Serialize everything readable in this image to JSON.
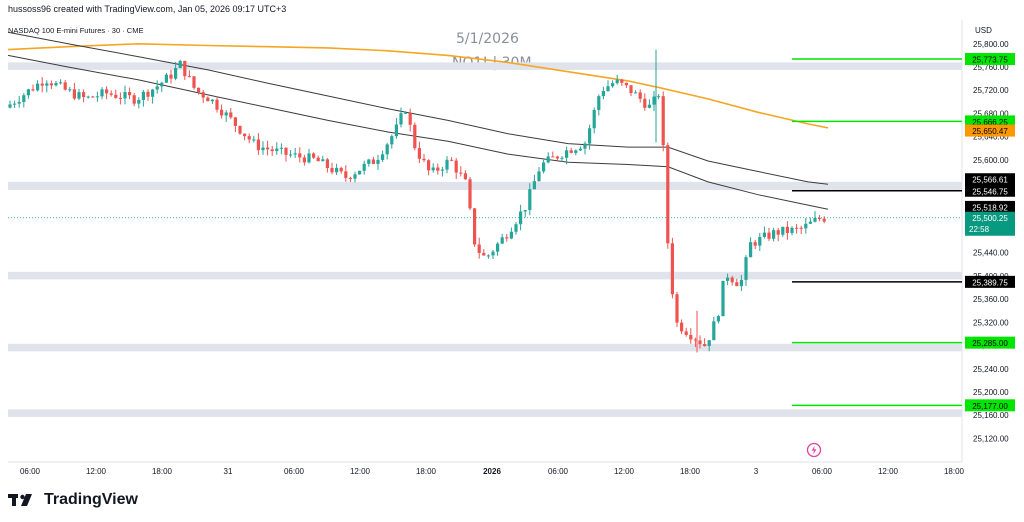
{
  "header": {
    "credit": "hussoss96 created with TradingView.com, Jan 05, 2026 09:17 UTC+3",
    "symbol_line": "NASDAQ 100 E-mini Futures · 30 · CME",
    "currency": "USD"
  },
  "watermark": {
    "date": "5/1/2026",
    "symbol": "NQ1! | 30M"
  },
  "footer": {
    "brand": "TradingView"
  },
  "icons": {
    "logo": "tradingview-logo-icon",
    "replay": "lightning-icon"
  },
  "colors": {
    "up": "#26a69a",
    "down": "#ef5350",
    "zone": "#e0e3eb",
    "support_resistance": "#00e600",
    "key_level": "#000000",
    "ma_long": "#f5a623",
    "ma_bands": "#3c3c3c",
    "last_price": "#089981"
  },
  "chart_data": {
    "type": "candlestick",
    "title": "",
    "ylim": [
      25100,
      25810
    ],
    "y_ticks": [
      25120,
      25160,
      25200,
      25240,
      25280,
      25320,
      25360,
      25400,
      25440,
      25480,
      25520,
      25560,
      25600,
      25640,
      25680,
      25720,
      25760,
      25800
    ],
    "x_tick_labels": [
      {
        "label": "06:00",
        "bold": false
      },
      {
        "label": "12:00",
        "bold": false
      },
      {
        "label": "18:00",
        "bold": false
      },
      {
        "label": "31",
        "bold": false
      },
      {
        "label": "06:00",
        "bold": false
      },
      {
        "label": "12:00",
        "bold": false
      },
      {
        "label": "18:00",
        "bold": false
      },
      {
        "label": "2026",
        "bold": true
      },
      {
        "label": "06:00",
        "bold": false
      },
      {
        "label": "12:00",
        "bold": false
      },
      {
        "label": "18:00",
        "bold": false
      },
      {
        "label": "3",
        "bold": false
      },
      {
        "label": "06:00",
        "bold": false
      },
      {
        "label": "12:00",
        "bold": false
      },
      {
        "label": "18:00",
        "bold": false
      }
    ],
    "zones": [
      {
        "low": 25755,
        "high": 25768
      },
      {
        "low": 25548,
        "high": 25562
      },
      {
        "low": 25394,
        "high": 25407
      },
      {
        "low": 25270,
        "high": 25283
      },
      {
        "low": 25157,
        "high": 25170
      }
    ],
    "levels": [
      {
        "price": 25773.75,
        "label": "25,773.75",
        "color": "#00e600"
      },
      {
        "price": 25666.25,
        "label": "25,666.25",
        "color": "#00e600"
      },
      {
        "price": 25546.75,
        "label": "25,546.75",
        "color": "#000000"
      },
      {
        "price": 25389.75,
        "label": "25,389.75",
        "color": "#000000"
      },
      {
        "price": 25285.0,
        "label": "25,285.00",
        "color": "#00e600"
      },
      {
        "price": 25177.0,
        "label": "25,177.00",
        "color": "#00e600"
      }
    ],
    "price_tags": [
      {
        "price": 25650.47,
        "label": "25,650.47",
        "bg": "#ff9800",
        "fg": "#000000"
      },
      {
        "price": 25566.61,
        "label": "25,566.61",
        "bg": "#000000",
        "fg": "#ffffff"
      },
      {
        "price": 25518.92,
        "label": "25,518.92",
        "bg": "#000000",
        "fg": "#ffffff"
      }
    ],
    "last_price": {
      "price": 25500.25,
      "label": "25,500.25",
      "countdown": "22:58"
    },
    "moving_averages": [
      {
        "color": "#f5a623",
        "points": [
          [
            0,
            25790
          ],
          [
            60,
            25795
          ],
          [
            130,
            25800
          ],
          [
            200,
            25797
          ],
          [
            260,
            25795
          ],
          [
            320,
            25793
          ],
          [
            380,
            25788
          ],
          [
            440,
            25780
          ],
          [
            500,
            25768
          ],
          [
            560,
            25752
          ],
          [
            620,
            25736
          ],
          [
            650,
            25725
          ],
          [
            700,
            25705
          ],
          [
            750,
            25682
          ],
          [
            800,
            25662
          ],
          [
            820,
            25655
          ]
        ]
      },
      {
        "color": "#3c3c3c",
        "points": [
          [
            0,
            25820
          ],
          [
            60,
            25800
          ],
          [
            130,
            25778
          ],
          [
            200,
            25755
          ],
          [
            260,
            25732
          ],
          [
            320,
            25710
          ],
          [
            380,
            25688
          ],
          [
            440,
            25668
          ],
          [
            500,
            25645
          ],
          [
            560,
            25628
          ],
          [
            620,
            25622
          ],
          [
            660,
            25622
          ],
          [
            700,
            25598
          ],
          [
            750,
            25580
          ],
          [
            800,
            25562
          ],
          [
            820,
            25558
          ]
        ]
      },
      {
        "color": "#3c3c3c",
        "points": [
          [
            0,
            25780
          ],
          [
            60,
            25760
          ],
          [
            130,
            25738
          ],
          [
            200,
            25712
          ],
          [
            260,
            25690
          ],
          [
            320,
            25668
          ],
          [
            380,
            25648
          ],
          [
            440,
            25632
          ],
          [
            500,
            25610
          ],
          [
            560,
            25596
          ],
          [
            620,
            25592
          ],
          [
            660,
            25588
          ],
          [
            700,
            25562
          ],
          [
            750,
            25540
          ],
          [
            800,
            25522
          ],
          [
            820,
            25515
          ]
        ]
      }
    ]
  }
}
